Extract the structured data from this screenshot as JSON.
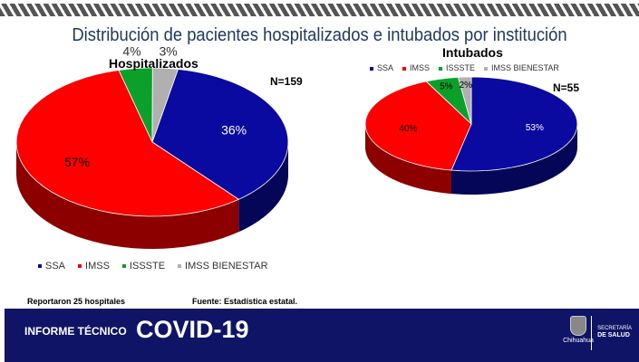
{
  "header": {
    "title": "Distribución de pacientes hospitalizados e intubados por institución"
  },
  "colors": {
    "SSA": "#0a0aa0",
    "IMSS": "#ff0000",
    "ISSSTE": "#0aa02a",
    "IMSS BIENESTAR": "#b0b0b0"
  },
  "chart_data": [
    {
      "type": "pie",
      "title": "Hospitalizados",
      "n_label": "N=159",
      "categories": [
        "SSA",
        "IMSS",
        "ISSSTE",
        "IMSS BIENESTAR"
      ],
      "values": [
        36,
        57,
        4,
        3
      ],
      "labels": [
        "36%",
        "57%",
        "4%",
        "3%"
      ],
      "legend": "bottom",
      "style": "3d"
    },
    {
      "type": "pie",
      "title": "Intubados",
      "n_label": "N=55",
      "categories": [
        "SSA",
        "IMSS",
        "ISSSTE",
        "IMSS BIENESTAR"
      ],
      "values": [
        53,
        40,
        5,
        2
      ],
      "labels": [
        "53%",
        "40%",
        "5%",
        "2%"
      ],
      "legend": "top",
      "style": "3d"
    }
  ],
  "footer": {
    "note": "Reportaron 25 hospitales",
    "source": "Fuente: Estadística estatal.",
    "report": "INFORME TÉCNICO",
    "brand": "COVID-19",
    "logo_text": "Chihuahua",
    "dept_line1": "SECRETARÍA",
    "dept_line2": "DE SALUD"
  }
}
